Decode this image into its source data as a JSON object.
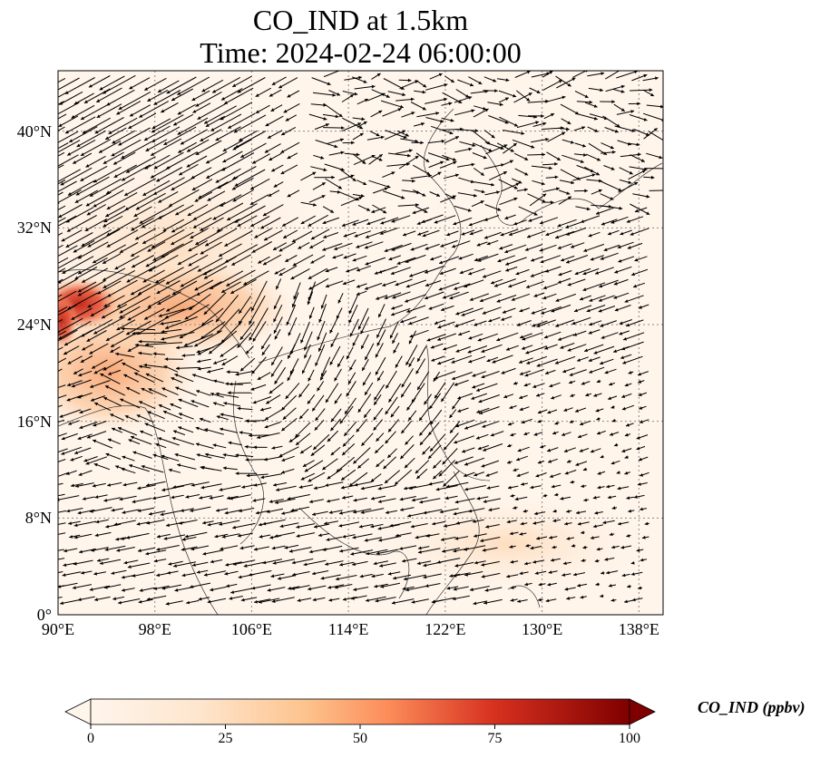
{
  "title_line1": "CO_IND at 1.5km",
  "title_line2": "Time: 2024-02-24 06:00:00",
  "map": {
    "lon_range": [
      90,
      140
    ],
    "lat_range": [
      0,
      45
    ],
    "lon_ticks": [
      {
        "value": 90,
        "label": "90°E"
      },
      {
        "value": 98,
        "label": "98°E"
      },
      {
        "value": 106,
        "label": "106°E"
      },
      {
        "value": 114,
        "label": "114°E"
      },
      {
        "value": 122,
        "label": "122°E"
      },
      {
        "value": 130,
        "label": "130°E"
      },
      {
        "value": 138,
        "label": "138°E"
      }
    ],
    "lat_ticks": [
      {
        "value": 0,
        "label": "0°"
      },
      {
        "value": 8,
        "label": "8°N"
      },
      {
        "value": 16,
        "label": "16°N"
      },
      {
        "value": 24,
        "label": "24°N"
      },
      {
        "value": 32,
        "label": "32°N"
      },
      {
        "value": 40,
        "label": "40°N"
      }
    ],
    "gridlines": true,
    "field": "CO_IND",
    "wind_vectors": true,
    "colors": {
      "background": "#fff5eb",
      "low": "#fee6ce",
      "mid": "#fdae6b",
      "high": "#d94801",
      "max": "#7f2704",
      "grid": "#888888",
      "arrow": "#000000"
    }
  },
  "colorbar": {
    "label": "CO_IND (ppbv)",
    "range": [
      0,
      100
    ],
    "extend": "both",
    "cmap": "OrRd",
    "ticks": [
      {
        "value": 0,
        "label": "0"
      },
      {
        "value": 25,
        "label": "25"
      },
      {
        "value": 50,
        "label": "50"
      },
      {
        "value": 75,
        "label": "75"
      },
      {
        "value": 100,
        "label": "100"
      }
    ]
  }
}
